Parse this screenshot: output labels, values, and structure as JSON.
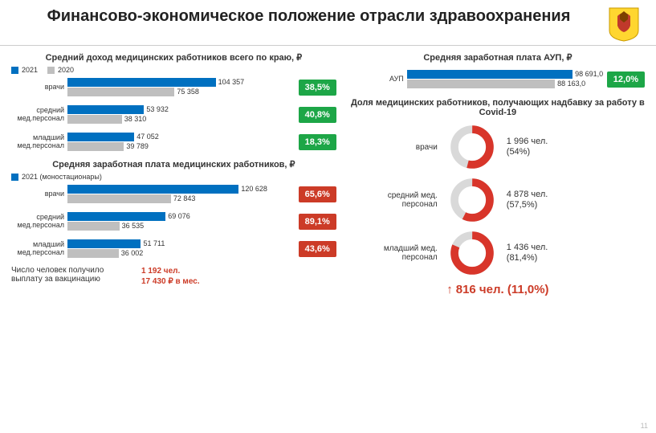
{
  "title": "Финансово-экономическое положение отрасли здравоохранения",
  "page_number": "11",
  "colors": {
    "bar_2021": "#0070c0",
    "bar_2020": "#bfbfbf",
    "badge_green": "#1da647",
    "badge_red": "#cc3b27",
    "donut_fill": "#d8352a",
    "donut_rest": "#d9d9d9",
    "text": "#333333",
    "accent_red": "#cc3b27"
  },
  "left": {
    "chart1": {
      "title": "Средний доход медицинских работников всего по краю, ₽",
      "legend": [
        {
          "label": "2021",
          "color": "#0070c0"
        },
        {
          "label": "2020",
          "color": "#bfbfbf"
        }
      ],
      "max": 130000,
      "track_width": 230,
      "rows": [
        {
          "cat": "врачи",
          "v2021": 104357,
          "v2020": 75358,
          "pct": "38,5%"
        },
        {
          "cat": "средний мед.персонал",
          "v2021": 53932,
          "v2020": 38310,
          "pct": "40,8%"
        },
        {
          "cat": "младший мед.персонал",
          "v2021": 47052,
          "v2020": 39789,
          "pct": "18,3%"
        }
      ],
      "badge_color": "#1da647"
    },
    "chart2": {
      "title": "Средняя заработная плата медицинских работников, ₽",
      "legend": [
        {
          "label": "2021 (моностационары)",
          "color": "#0070c0"
        }
      ],
      "max": 130000,
      "track_width": 230,
      "rows": [
        {
          "cat": "врачи",
          "v2021": 120628,
          "v2020": 72843,
          "pct": "65,6%"
        },
        {
          "cat": "средний мед.персонал",
          "v2021": 69076,
          "v2020": 36535,
          "pct": "89,1%"
        },
        {
          "cat": "младший мед.персонал",
          "v2021": 51711,
          "v2020": 36002,
          "pct": "43,6%"
        }
      ],
      "badge_color": "#cc3b27"
    },
    "footer": {
      "label": "Число человек получило выплату за вакцинацию",
      "line1": "1 192 чел.",
      "line2": "17 430 ₽ в мес."
    }
  },
  "right": {
    "chart3": {
      "title": "Средняя заработная плата АУП, ₽",
      "max": 110000,
      "track_width": 230,
      "rows": [
        {
          "cat": "АУП",
          "v2021": 98691.0,
          "v2020": 88163.0,
          "v2021_label": "98 691,0",
          "v2020_label": "88 163,0",
          "pct": "12,0%"
        }
      ],
      "badge_color": "#1da647"
    },
    "donuts": {
      "title": "Доля медицинских работников, получающих надбавку за работу в Covid-19",
      "rows": [
        {
          "cat": "врачи",
          "count": "1 996 чел.",
          "pct_label": "(54%)",
          "pct": 54
        },
        {
          "cat": "средний мед. персонал",
          "count": "4 878 чел.",
          "pct_label": "(57,5%)",
          "pct": 57.5
        },
        {
          "cat": "младший мед. персонал",
          "count": "1 436 чел.",
          "pct_label": "(81,4%)",
          "pct": 81.4
        }
      ]
    },
    "footer": "816 чел. (11,0%)"
  }
}
